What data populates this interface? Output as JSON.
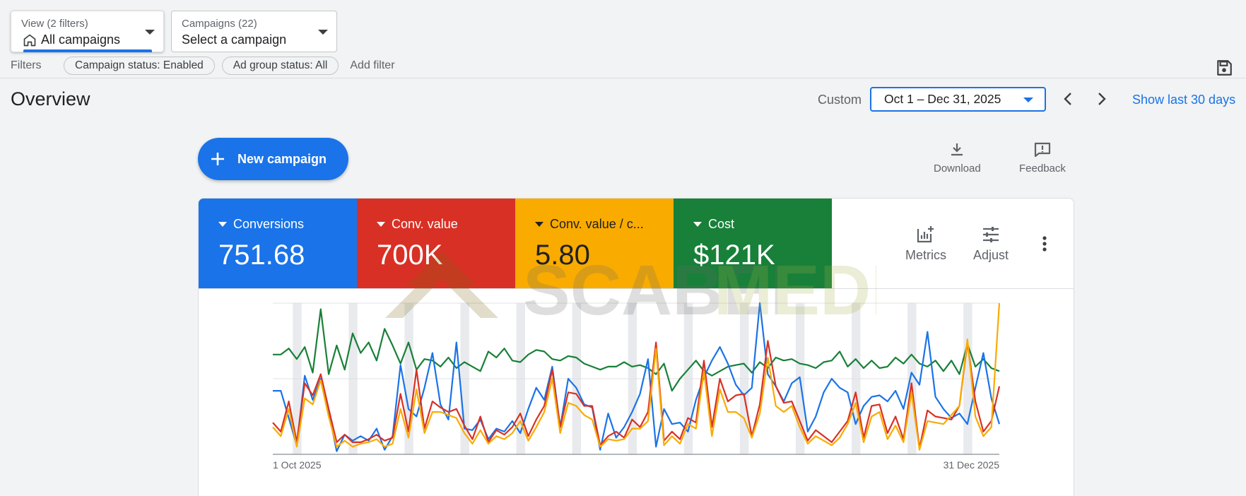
{
  "view_selector": {
    "label": "View (2 filters)",
    "value": "All campaigns"
  },
  "campaign_selector": {
    "label": "Campaigns (22)",
    "value": "Select a campaign"
  },
  "filters": {
    "label": "Filters",
    "chips": [
      "Campaign status: Enabled",
      "Ad group status: All"
    ],
    "add_label": "Add filter"
  },
  "page_title": "Overview",
  "date_range": {
    "mode": "Custom",
    "value": "Oct 1 – Dec 31, 2025",
    "show_last": "Show last 30 days"
  },
  "actions": {
    "new_campaign": "New campaign",
    "download": "Download",
    "feedback": "Feedback"
  },
  "scorecards": [
    {
      "label": "Conversions",
      "value": "751.68",
      "color": "#1a73e8"
    },
    {
      "label": "Conv. value",
      "value": "700K",
      "color": "#d93025"
    },
    {
      "label": "Conv. value / c...",
      "value": "5.80",
      "color": "#f9ab00"
    },
    {
      "label": "Cost",
      "value": "$121K",
      "color": "#188038"
    }
  ],
  "card_tools": {
    "metrics": "Metrics",
    "adjust": "Adjust"
  },
  "watermark": {
    "text_a": "SCABEL",
    "text_b": "MEDIA"
  },
  "chart_data": {
    "type": "line",
    "x_start": "1 Oct 2025",
    "x_end": "31 Dec 2025",
    "points_per_series": 92,
    "normalized": true,
    "series": [
      {
        "color": "#188038",
        "values": [
          0.66,
          0.66,
          0.7,
          0.63,
          0.71,
          0.54,
          0.96,
          0.53,
          0.72,
          0.56,
          0.8,
          0.67,
          0.74,
          0.62,
          0.83,
          0.72,
          0.6,
          0.74,
          0.56,
          0.63,
          0.62,
          0.58,
          0.64,
          0.57,
          0.61,
          0.58,
          0.55,
          0.68,
          0.64,
          0.7,
          0.62,
          0.61,
          0.66,
          0.69,
          0.68,
          0.63,
          0.62,
          0.65,
          0.64,
          0.6,
          0.58,
          0.56,
          0.58,
          0.58,
          0.61,
          0.58,
          0.59,
          0.57,
          0.53,
          0.6,
          0.42,
          0.5,
          0.56,
          0.62,
          0.55,
          0.52,
          0.55,
          0.58,
          0.59,
          0.6,
          0.54,
          0.61,
          0.57,
          0.64,
          0.62,
          0.63,
          0.6,
          0.59,
          0.57,
          0.61,
          0.62,
          0.68,
          0.58,
          0.63,
          0.57,
          0.62,
          0.57,
          0.58,
          0.64,
          0.6,
          0.66,
          0.6,
          0.58,
          0.62,
          0.55,
          0.62,
          0.53,
          0.73,
          0.58,
          0.63,
          0.57,
          0.55
        ]
      },
      {
        "color": "#1a73e8",
        "values": [
          0.42,
          0.42,
          0.24,
          0.06,
          0.52,
          0.36,
          0.5,
          0.28,
          0.02,
          0.13,
          0.09,
          0.12,
          0.09,
          0.17,
          0.03,
          0.12,
          0.59,
          0.3,
          0.25,
          0.44,
          0.67,
          0.33,
          0.23,
          0.74,
          0.17,
          0.16,
          0.23,
          0.1,
          0.17,
          0.15,
          0.22,
          0.14,
          0.3,
          0.44,
          0.36,
          0.58,
          0.18,
          0.5,
          0.44,
          0.33,
          0.31,
          0.03,
          0.27,
          0.11,
          0.18,
          0.28,
          0.4,
          0.63,
          0.05,
          0.3,
          0.2,
          0.21,
          0.15,
          0.36,
          0.51,
          0.62,
          0.71,
          0.6,
          0.46,
          0.39,
          0.44,
          1.0,
          0.53,
          0.45,
          0.35,
          0.47,
          0.51,
          0.15,
          0.25,
          0.41,
          0.5,
          0.44,
          0.41,
          0.2,
          0.32,
          0.38,
          0.39,
          0.35,
          0.42,
          0.3,
          0.54,
          0.46,
          0.81,
          0.38,
          0.3,
          0.24,
          0.27,
          0.2,
          0.44,
          0.67,
          0.37,
          0.2
        ]
      },
      {
        "color": "#d93025",
        "values": [
          0.21,
          0.15,
          0.35,
          0.08,
          0.47,
          0.39,
          0.53,
          0.3,
          0.08,
          0.13,
          0.08,
          0.08,
          0.1,
          0.13,
          0.09,
          0.11,
          0.4,
          0.15,
          0.56,
          0.17,
          0.35,
          0.31,
          0.28,
          0.3,
          0.19,
          0.1,
          0.25,
          0.08,
          0.16,
          0.13,
          0.18,
          0.27,
          0.12,
          0.23,
          0.32,
          0.56,
          0.18,
          0.41,
          0.4,
          0.32,
          0.32,
          0.06,
          0.12,
          0.15,
          0.11,
          0.23,
          0.18,
          0.28,
          0.74,
          0.09,
          0.15,
          0.1,
          0.24,
          0.21,
          0.62,
          0.18,
          0.5,
          0.35,
          0.39,
          0.4,
          0.12,
          0.33,
          0.75,
          0.45,
          0.34,
          0.35,
          0.22,
          0.09,
          0.16,
          0.12,
          0.08,
          0.15,
          0.22,
          0.41,
          0.11,
          0.32,
          0.33,
          0.14,
          0.25,
          0.1,
          0.47,
          0.04,
          0.29,
          0.25,
          0.24,
          0.23,
          0.32,
          0.74,
          0.35,
          0.15,
          0.22,
          0.45
        ]
      },
      {
        "color": "#f9ab00",
        "values": [
          0.18,
          0.12,
          0.3,
          0.05,
          0.37,
          0.33,
          0.49,
          0.25,
          0.05,
          0.09,
          0.05,
          0.07,
          0.08,
          0.1,
          0.05,
          0.07,
          0.3,
          0.11,
          0.43,
          0.14,
          0.28,
          0.28,
          0.26,
          0.24,
          0.14,
          0.07,
          0.16,
          0.07,
          0.12,
          0.1,
          0.14,
          0.22,
          0.09,
          0.18,
          0.28,
          0.5,
          0.14,
          0.34,
          0.32,
          0.26,
          0.23,
          0.05,
          0.1,
          0.09,
          0.1,
          0.17,
          0.17,
          0.22,
          0.7,
          0.06,
          0.12,
          0.07,
          0.2,
          0.17,
          0.55,
          0.12,
          0.43,
          0.28,
          0.28,
          0.24,
          0.11,
          0.27,
          0.64,
          0.32,
          0.28,
          0.32,
          0.18,
          0.07,
          0.12,
          0.09,
          0.06,
          0.11,
          0.2,
          0.34,
          0.08,
          0.25,
          0.28,
          0.1,
          0.19,
          0.08,
          0.41,
          0.03,
          0.22,
          0.21,
          0.2,
          0.26,
          0.32,
          0.76,
          0.25,
          0.12,
          0.18,
          1.0
        ]
      }
    ],
    "weekend_bands": true,
    "grid": true
  }
}
